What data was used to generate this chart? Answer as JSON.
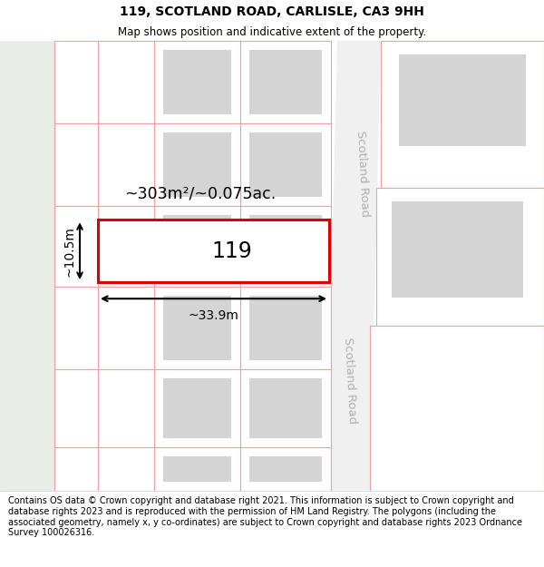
{
  "title": "119, SCOTLAND ROAD, CARLISLE, CA3 9HH",
  "subtitle": "Map shows position and indicative extent of the property.",
  "footer": "Contains OS data © Crown copyright and database right 2021. This information is subject to Crown copyright and database rights 2023 and is reproduced with the permission of HM Land Registry. The polygons (including the associated geometry, namely x, y co-ordinates) are subject to Crown copyright and database rights 2023 Ordnance Survey 100026316.",
  "map_bg": "#ffffff",
  "left_strip_color": "#e8ede8",
  "road_color": "#e0e0e0",
  "pink_line_color": "#f0a0a0",
  "building_fill_color": "#d4d4d4",
  "area_label": "~303m²/~0.075ac.",
  "number_label": "119",
  "width_label": "~33.9m",
  "height_label": "~10.5m",
  "scotland_road_label": "Scotland Road",
  "title_fontsize": 10,
  "subtitle_fontsize": 8.5,
  "footer_fontsize": 7.0
}
